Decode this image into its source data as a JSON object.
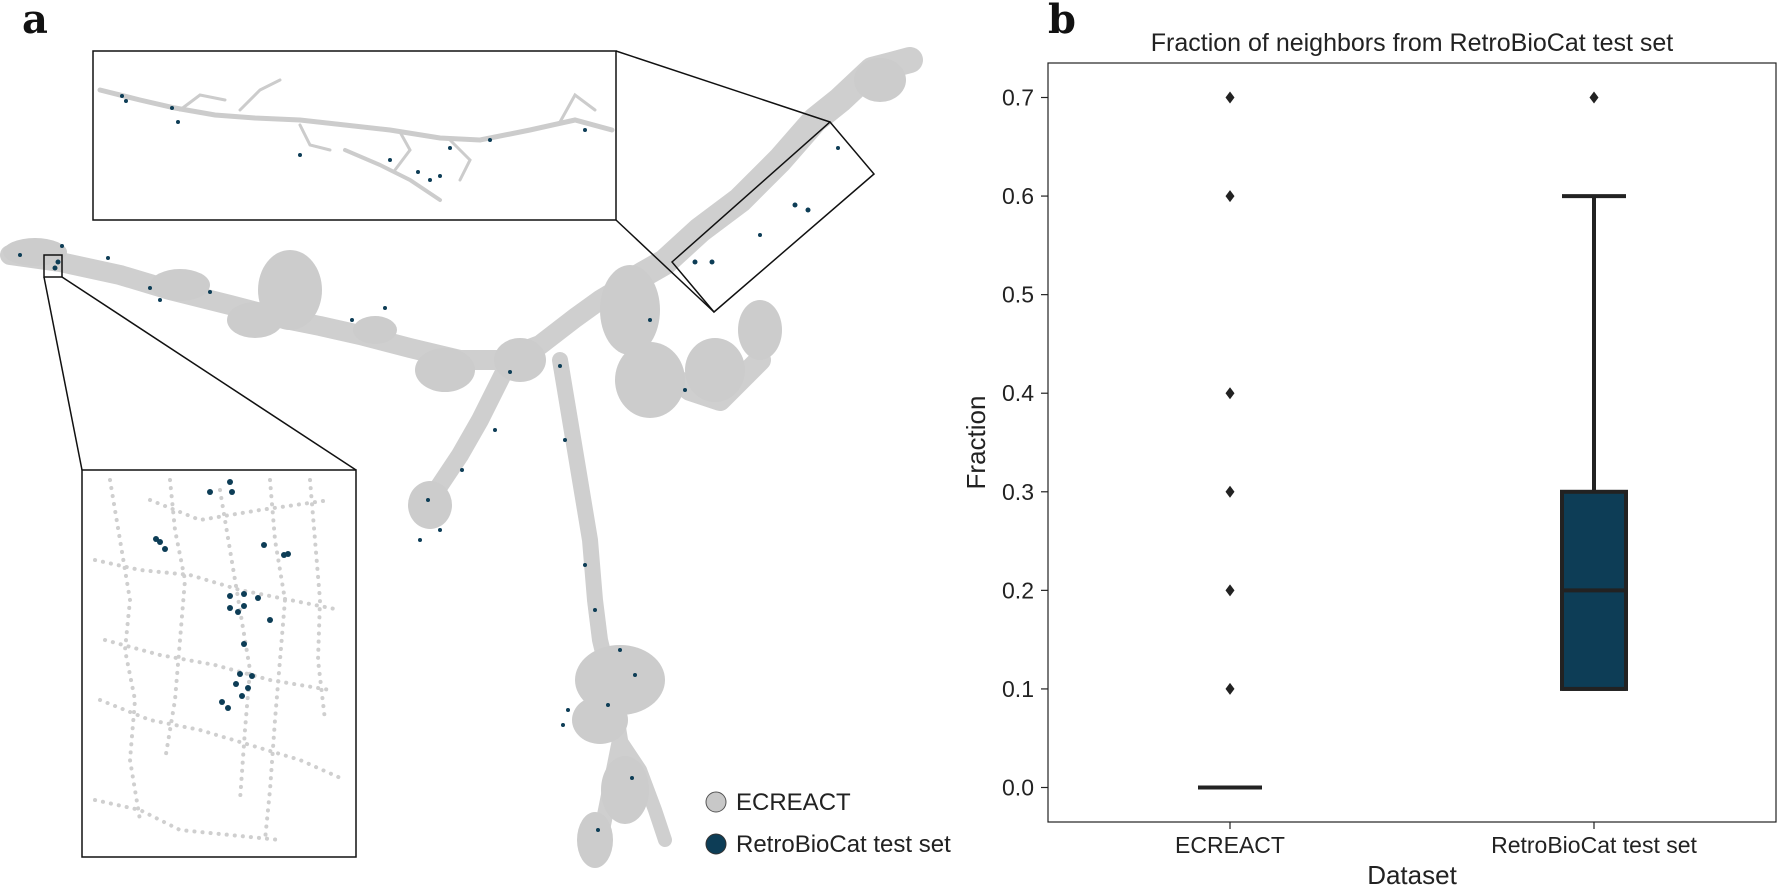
{
  "panels": {
    "a_label": "a",
    "b_label": "b"
  },
  "network": {
    "legend": [
      {
        "label": "ECREACT",
        "color": "#c8c8c8"
      },
      {
        "label": "RetroBioCat test set",
        "color": "#0d3d56"
      }
    ]
  },
  "chart_data": {
    "type": "box",
    "title": "Fraction of neighbors from RetroBioCat test set",
    "xlabel": "Dataset",
    "ylabel": "Fraction",
    "categories": [
      "ECREACT",
      "RetroBioCat test set"
    ],
    "ylim": [
      -0.035,
      0.735
    ],
    "yticks": [
      0.0,
      0.1,
      0.2,
      0.3,
      0.4,
      0.5,
      0.6,
      0.7
    ],
    "ytick_labels": [
      "0.0",
      "0.1",
      "0.2",
      "0.3",
      "0.4",
      "0.5",
      "0.6",
      "0.7"
    ],
    "boxes": [
      {
        "name": "ECREACT",
        "min": 0.0,
        "q1": 0.0,
        "median": 0.0,
        "q3": 0.0,
        "max": 0.0,
        "outliers": [
          0.1,
          0.2,
          0.3,
          0.4,
          0.6,
          0.7
        ],
        "color": "#c8c8c8"
      },
      {
        "name": "RetroBioCat test set",
        "min": 0.1,
        "q1": 0.1,
        "median": 0.2,
        "q3": 0.3,
        "max": 0.6,
        "outliers": [
          0.7
        ],
        "color": "#0d3d56"
      }
    ],
    "grid": false
  }
}
